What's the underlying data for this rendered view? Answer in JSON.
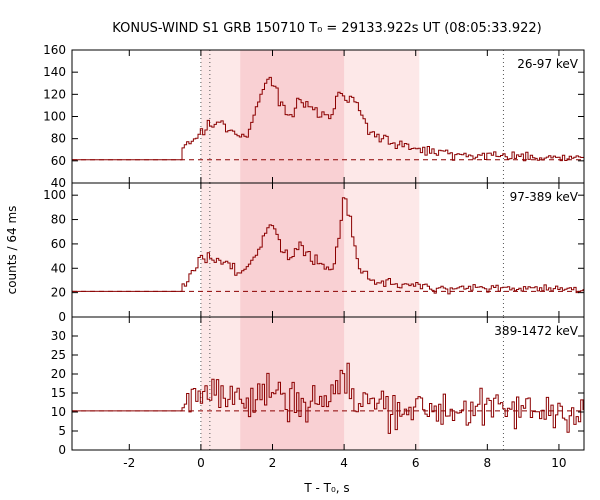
{
  "chart_data": {
    "type": "line",
    "title": "KONUS-WIND S1 GRB 150710 T₀ = 29133.922s UT (08:05:33.922)",
    "xlabel": "T - T₀, s",
    "ylabel": "counts / 64 ms",
    "xlim": [
      -3.6,
      10.7
    ],
    "x_ticks": [
      -2,
      0,
      2,
      4,
      6,
      8,
      10
    ],
    "shaded_intervals": [
      {
        "x": [
          0.0,
          6.1
        ],
        "shade": "light"
      },
      {
        "x": [
          1.1,
          4.0
        ],
        "shade": "dark"
      }
    ],
    "vertical_markers": [
      0.0,
      0.25,
      8.45
    ],
    "colors": {
      "series": "#8b0000",
      "light_shade": "#fde8e8",
      "dark_shade": "#f9d0d3",
      "marker": "#555555"
    },
    "panels": [
      {
        "label": "26-97 keV",
        "ylim": [
          40,
          160
        ],
        "yticks": [
          40,
          60,
          80,
          100,
          120,
          140,
          160
        ],
        "background_level": 61,
        "profile": [
          {
            "x": -3.6,
            "y": 61
          },
          {
            "x": -0.5,
            "y": 61
          },
          {
            "x": -0.5,
            "y": 72
          },
          {
            "x": -0.2,
            "y": 80
          },
          {
            "x": 0.0,
            "y": 90
          },
          {
            "x": 0.5,
            "y": 95
          },
          {
            "x": 0.9,
            "y": 85
          },
          {
            "x": 1.3,
            "y": 82
          },
          {
            "x": 1.5,
            "y": 105
          },
          {
            "x": 1.7,
            "y": 120
          },
          {
            "x": 1.8,
            "y": 125
          },
          {
            "x": 1.9,
            "y": 138
          },
          {
            "x": 2.1,
            "y": 125
          },
          {
            "x": 2.2,
            "y": 110
          },
          {
            "x": 2.5,
            "y": 100
          },
          {
            "x": 2.7,
            "y": 115
          },
          {
            "x": 2.9,
            "y": 112
          },
          {
            "x": 3.1,
            "y": 105
          },
          {
            "x": 3.3,
            "y": 100
          },
          {
            "x": 3.6,
            "y": 100
          },
          {
            "x": 3.9,
            "y": 120
          },
          {
            "x": 4.1,
            "y": 118
          },
          {
            "x": 4.4,
            "y": 108
          },
          {
            "x": 4.7,
            "y": 85
          },
          {
            "x": 5.2,
            "y": 78
          },
          {
            "x": 6.0,
            "y": 70
          },
          {
            "x": 7.0,
            "y": 66
          },
          {
            "x": 8.0,
            "y": 65
          },
          {
            "x": 9.0,
            "y": 64
          },
          {
            "x": 10.7,
            "y": 63
          }
        ]
      },
      {
        "label": "97-389 keV",
        "ylim": [
          0,
          110
        ],
        "yticks": [
          0,
          20,
          40,
          60,
          80,
          100
        ],
        "background_level": 21,
        "profile": [
          {
            "x": -3.6,
            "y": 21
          },
          {
            "x": -0.5,
            "y": 21
          },
          {
            "x": -0.5,
            "y": 25
          },
          {
            "x": -0.2,
            "y": 38
          },
          {
            "x": 0.0,
            "y": 50
          },
          {
            "x": 0.4,
            "y": 48
          },
          {
            "x": 0.8,
            "y": 42
          },
          {
            "x": 1.2,
            "y": 38
          },
          {
            "x": 1.6,
            "y": 52
          },
          {
            "x": 1.8,
            "y": 68
          },
          {
            "x": 1.9,
            "y": 78
          },
          {
            "x": 2.1,
            "y": 70
          },
          {
            "x": 2.3,
            "y": 55
          },
          {
            "x": 2.5,
            "y": 48
          },
          {
            "x": 2.7,
            "y": 58
          },
          {
            "x": 2.9,
            "y": 55
          },
          {
            "x": 3.1,
            "y": 45
          },
          {
            "x": 3.4,
            "y": 42
          },
          {
            "x": 3.7,
            "y": 38
          },
          {
            "x": 3.9,
            "y": 72
          },
          {
            "x": 4.0,
            "y": 100
          },
          {
            "x": 4.2,
            "y": 75
          },
          {
            "x": 4.4,
            "y": 38
          },
          {
            "x": 4.8,
            "y": 30
          },
          {
            "x": 5.5,
            "y": 27
          },
          {
            "x": 6.5,
            "y": 24
          },
          {
            "x": 8.0,
            "y": 24
          },
          {
            "x": 10.7,
            "y": 23
          }
        ]
      },
      {
        "label": "389-1472 keV",
        "ylim": [
          0,
          35
        ],
        "yticks": [
          0,
          5,
          10,
          15,
          20,
          25,
          30
        ],
        "background_level": 10.3,
        "profile": [
          {
            "x": -3.6,
            "y": 10.3
          },
          {
            "x": -0.5,
            "y": 10.3
          },
          {
            "x": -0.5,
            "y": 13
          },
          {
            "x": -0.2,
            "y": 15
          },
          {
            "x": 0.0,
            "y": 17
          },
          {
            "x": 0.5,
            "y": 15
          },
          {
            "x": 1.0,
            "y": 13
          },
          {
            "x": 1.5,
            "y": 13
          },
          {
            "x": 1.9,
            "y": 16
          },
          {
            "x": 2.3,
            "y": 14
          },
          {
            "x": 2.8,
            "y": 13
          },
          {
            "x": 3.3,
            "y": 13
          },
          {
            "x": 3.8,
            "y": 15
          },
          {
            "x": 4.0,
            "y": 19
          },
          {
            "x": 4.3,
            "y": 13
          },
          {
            "x": 5.0,
            "y": 12
          },
          {
            "x": 6.0,
            "y": 11
          },
          {
            "x": 8.0,
            "y": 10.5
          },
          {
            "x": 10.7,
            "y": 10.3
          }
        ]
      }
    ],
    "noise_amplitude": [
      0.12,
      0.16,
      0.35
    ],
    "bin_width_s": 0.064
  }
}
